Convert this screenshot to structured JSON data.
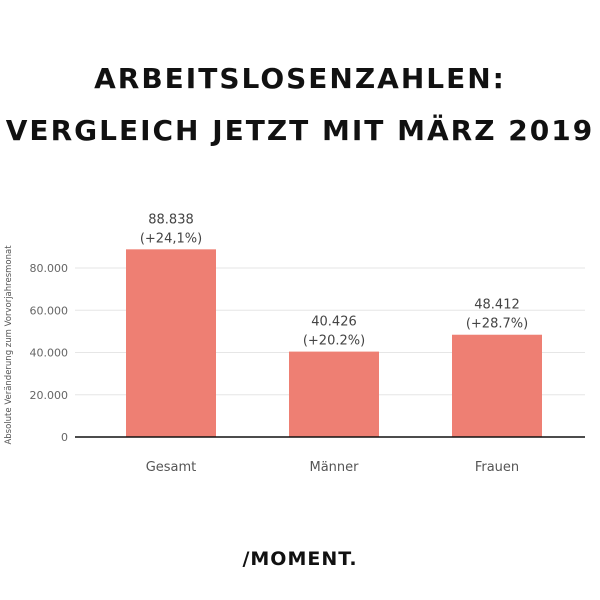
{
  "title_line1": "ARBEITSLOSENZAHLEN:",
  "title_line2": "VERGLEICH JETZT MIT MÄRZ 2019",
  "logo": "/MOMENT.",
  "chart_data": {
    "type": "bar",
    "categories": [
      "Gesamt",
      "Männer",
      "Frauen"
    ],
    "values": [
      88838,
      40426,
      48412
    ],
    "value_labels": [
      "88.838",
      "40.426",
      "48.412"
    ],
    "change_labels": [
      "(+24,1%)",
      "(+20.2%)",
      "(+28.7%)"
    ],
    "ylabel": "Absolute Veränderung zum Vorvorjahresmonat",
    "ylim": [
      0,
      100000
    ],
    "yticks": [
      0,
      20000,
      40000,
      60000,
      80000
    ],
    "ytick_labels": [
      "0",
      "20.000",
      "40.000",
      "60.000",
      "80.000"
    ],
    "grid": true,
    "bar_color": "#ee7f73"
  }
}
